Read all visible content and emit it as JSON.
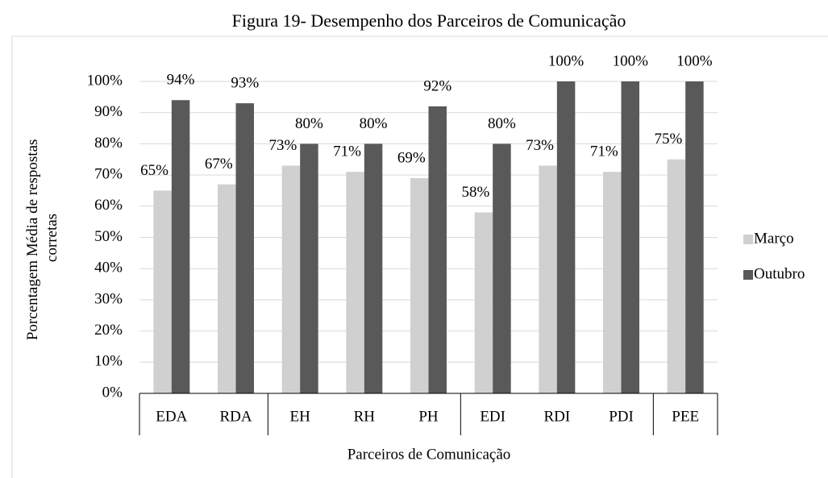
{
  "chart_data": {
    "type": "bar",
    "title": "Figura 19- Desempenho dos Parceiros de Comunicação",
    "x_label": "Parceiros de Comunicação",
    "y_label": [
      "Porcentagem Média de respostas",
      "corretas"
    ],
    "categories": [
      "EDA",
      "RDA",
      "EH",
      "RH",
      "PH",
      "EDI",
      "RDI",
      "PDI",
      "PEE"
    ],
    "series": [
      {
        "name": "Março",
        "color": "#d0d0d0",
        "values": [
          65,
          67,
          73,
          71,
          69,
          58,
          73,
          71,
          75
        ],
        "value_labels": [
          "65%",
          "67%",
          "73%",
          "71%",
          "69%",
          "58%",
          "73%",
          "71%",
          "75%"
        ]
      },
      {
        "name": "Outubro",
        "color": "#595959",
        "values": [
          94,
          93,
          80,
          80,
          92,
          80,
          100,
          100,
          100
        ],
        "value_labels": [
          "94%",
          "93%",
          "80%",
          "80%",
          "92%",
          "80%",
          "100%",
          "100%",
          "100%"
        ]
      }
    ],
    "ylim": [
      0,
      100
    ],
    "yticks": [
      {
        "value": 0,
        "label": "0%"
      },
      {
        "value": 10,
        "label": "10%"
      },
      {
        "value": 20,
        "label": "20%"
      },
      {
        "value": 30,
        "label": "30%"
      },
      {
        "value": 40,
        "label": "40%"
      },
      {
        "value": 50,
        "label": "50%"
      },
      {
        "value": 60,
        "label": "60%"
      },
      {
        "value": 70,
        "label": "70%"
      },
      {
        "value": 80,
        "label": "80%"
      },
      {
        "value": 90,
        "label": "90%"
      },
      {
        "value": 100,
        "label": "100%"
      }
    ],
    "grid": true,
    "legend": "right"
  }
}
